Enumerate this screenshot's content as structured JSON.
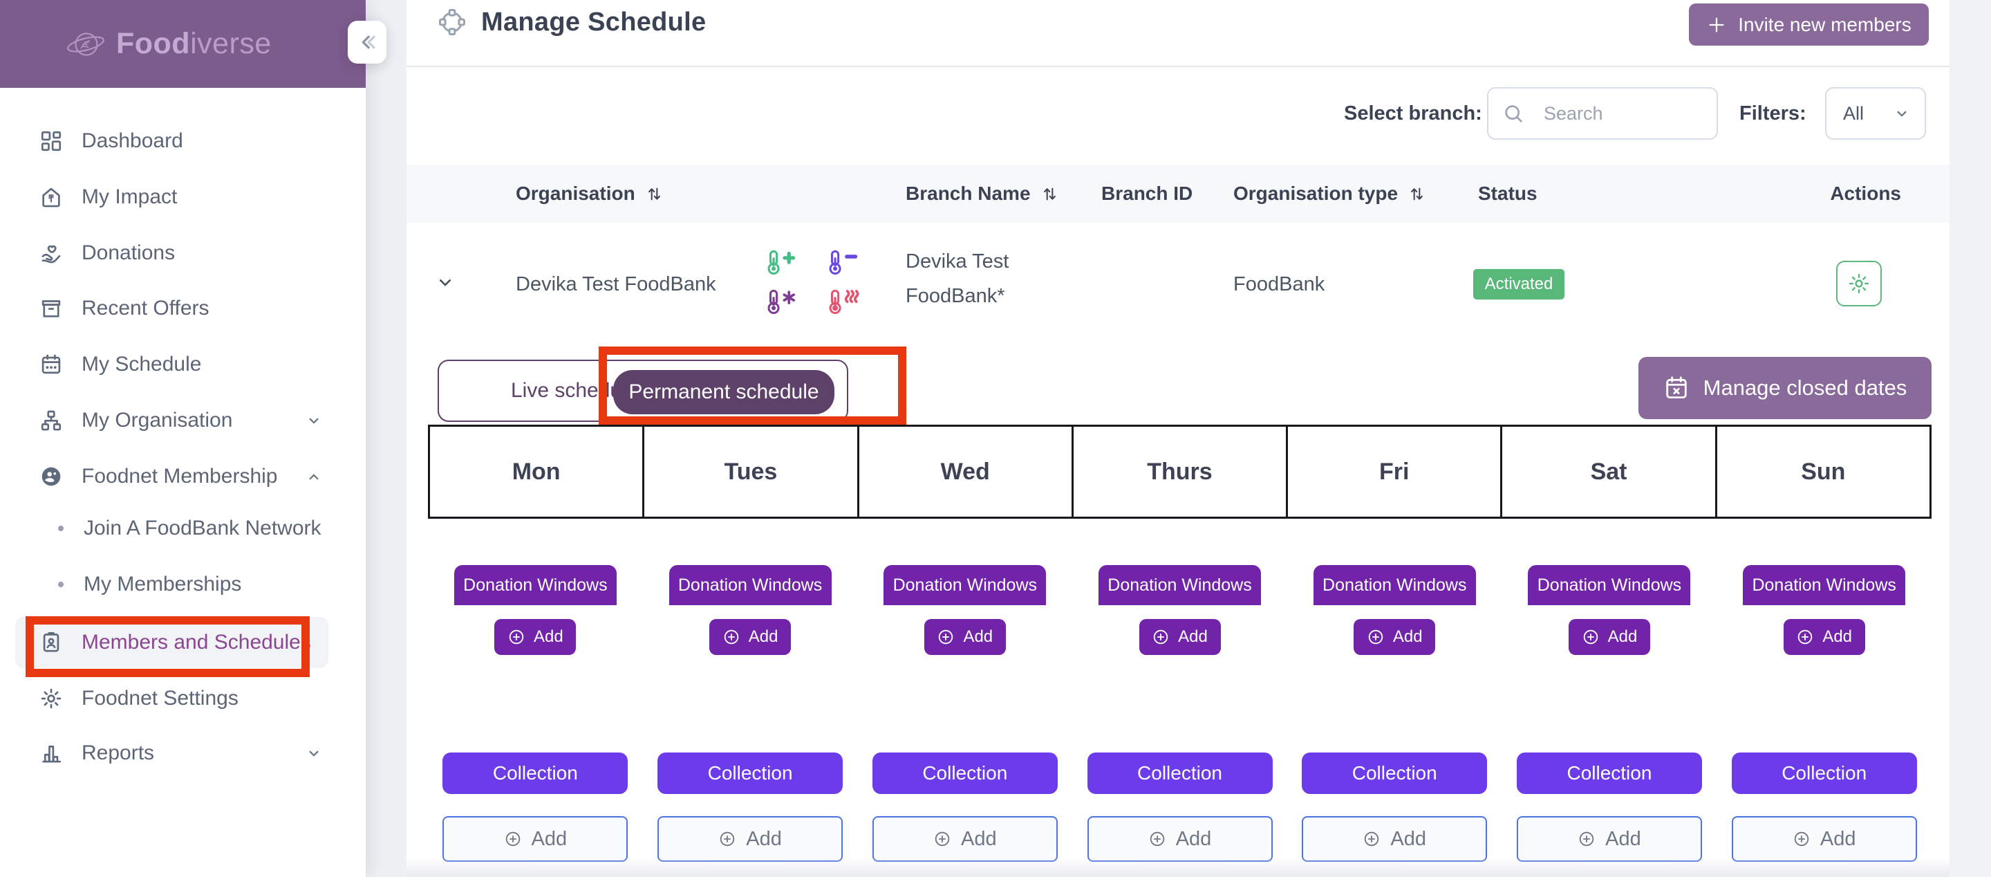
{
  "sidebar": {
    "logo_bold": "Food",
    "logo_light": "iverse",
    "items": [
      {
        "label": "Dashboard",
        "icon": "dashboard",
        "type": "item"
      },
      {
        "label": "My Impact",
        "icon": "impact",
        "type": "item"
      },
      {
        "label": "Donations",
        "icon": "donations",
        "type": "item"
      },
      {
        "label": "Recent Offers",
        "icon": "offers",
        "type": "item"
      },
      {
        "label": "My Schedule",
        "icon": "calendar",
        "type": "item"
      },
      {
        "label": "My Organisation",
        "icon": "organisation",
        "type": "item",
        "chevron": "down"
      },
      {
        "label": "Foodnet Membership",
        "icon": "membership",
        "type": "item",
        "chevron": "up"
      },
      {
        "label": "Join A FoodBank Network",
        "type": "sub"
      },
      {
        "label": "My Memberships",
        "type": "sub"
      },
      {
        "label": "Members and Schedules",
        "icon": "badge",
        "type": "item",
        "selected": true
      },
      {
        "label": "Foodnet Settings",
        "icon": "gear",
        "type": "item"
      },
      {
        "label": "Reports",
        "icon": "reports",
        "type": "item",
        "chevron": "down"
      }
    ]
  },
  "header": {
    "title": "Manage Schedule",
    "invite_button": "Invite new members"
  },
  "toolbar": {
    "select_branch_label": "Select branch:",
    "search_placeholder": "Search",
    "filters_label": "Filters:",
    "filter_value": "All"
  },
  "table": {
    "columns": [
      {
        "label": "Organisation",
        "sort": true
      },
      {
        "label": "Branch Name",
        "sort": true
      },
      {
        "label": "Branch ID",
        "sort": false
      },
      {
        "label": "Organisation type",
        "sort": true
      },
      {
        "label": "Status",
        "sort": false
      },
      {
        "label": "Actions",
        "sort": false
      }
    ],
    "row": {
      "organisation": "Devika Test FoodBank",
      "branch_name_line1": "Devika Test",
      "branch_name_line2": "FoodBank*",
      "organisation_type": "FoodBank",
      "status": "Activated",
      "temperature_icons": [
        "thermo-ambient-plus",
        "thermo-chilled-minus",
        "thermo-frozen-snowflake",
        "thermo-hot-heatwaves"
      ]
    }
  },
  "tabs": {
    "live": "Live schedule",
    "permanent": "Permanent schedule"
  },
  "buttons": {
    "manage_closed_dates": "Manage closed dates"
  },
  "schedule": {
    "days": [
      "Mon",
      "Tues",
      "Wed",
      "Thurs",
      "Fri",
      "Sat",
      "Sun"
    ],
    "donation_windows_label": "Donation Windows",
    "donation_add_label": "Add",
    "collection_label": "Collection",
    "collection_add_label": "Add"
  },
  "colors": {
    "sidebar_purple": "#7c5c8c",
    "accent_purple": "#8a6a9b",
    "deep_purple": "#7123a9",
    "violet": "#6c3cea",
    "status_green": "#57b87a",
    "annotation_red": "#e8380f",
    "tab_purple": "#5d4168",
    "outline_blue": "#4d73e6",
    "thermo_green": "#44bd86",
    "thermo_indigo": "#6a49e2",
    "thermo_purple": "#7d3e92",
    "thermo_red": "#e25470"
  }
}
